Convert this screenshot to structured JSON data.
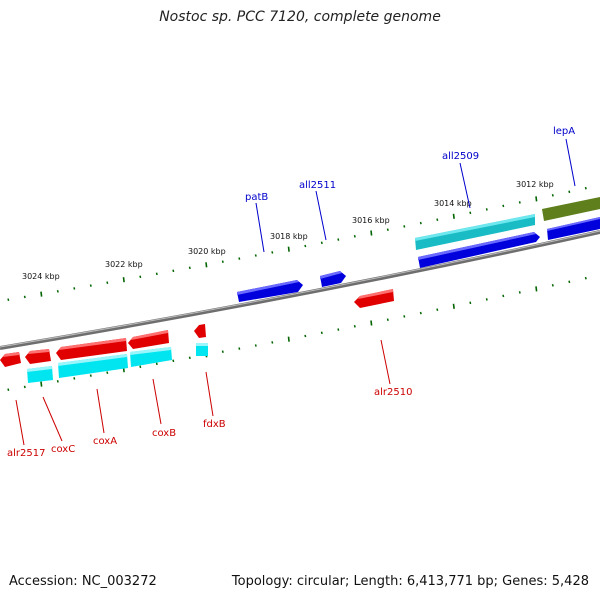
{
  "title": "Nostoc sp. PCC 7120, complete genome",
  "accession": "Accession: NC_003272",
  "summary": "Topology: circular; Length: 6,413,771 bp; Genes: 5,428",
  "colors": {
    "forward_gene": "#ff0000",
    "reverse_gene": "#0000ee",
    "cds_forward": "#00d8e8",
    "cds_reverse": "#18c0c8",
    "olive_gene": "#6b8e23",
    "backbone": "#808080",
    "tick": "#006400",
    "label_forward": "#cc0000",
    "label_reverse": "#0000cc"
  },
  "scale_labels": [
    "3012 kbp",
    "3014 kbp",
    "3016 kbp",
    "3018 kbp",
    "3020 kbp",
    "3022 kbp",
    "3024 kbp"
  ],
  "genes": [
    {
      "name": "lepA",
      "strand": "reverse"
    },
    {
      "name": "all2509",
      "strand": "reverse"
    },
    {
      "name": "all2511",
      "strand": "reverse"
    },
    {
      "name": "patB",
      "strand": "reverse"
    },
    {
      "name": "alr2510",
      "strand": "forward"
    },
    {
      "name": "fdxB",
      "strand": "forward"
    },
    {
      "name": "coxB",
      "strand": "forward"
    },
    {
      "name": "coxA",
      "strand": "forward"
    },
    {
      "name": "coxC",
      "strand": "forward"
    },
    {
      "name": "alr2517",
      "strand": "forward"
    }
  ]
}
